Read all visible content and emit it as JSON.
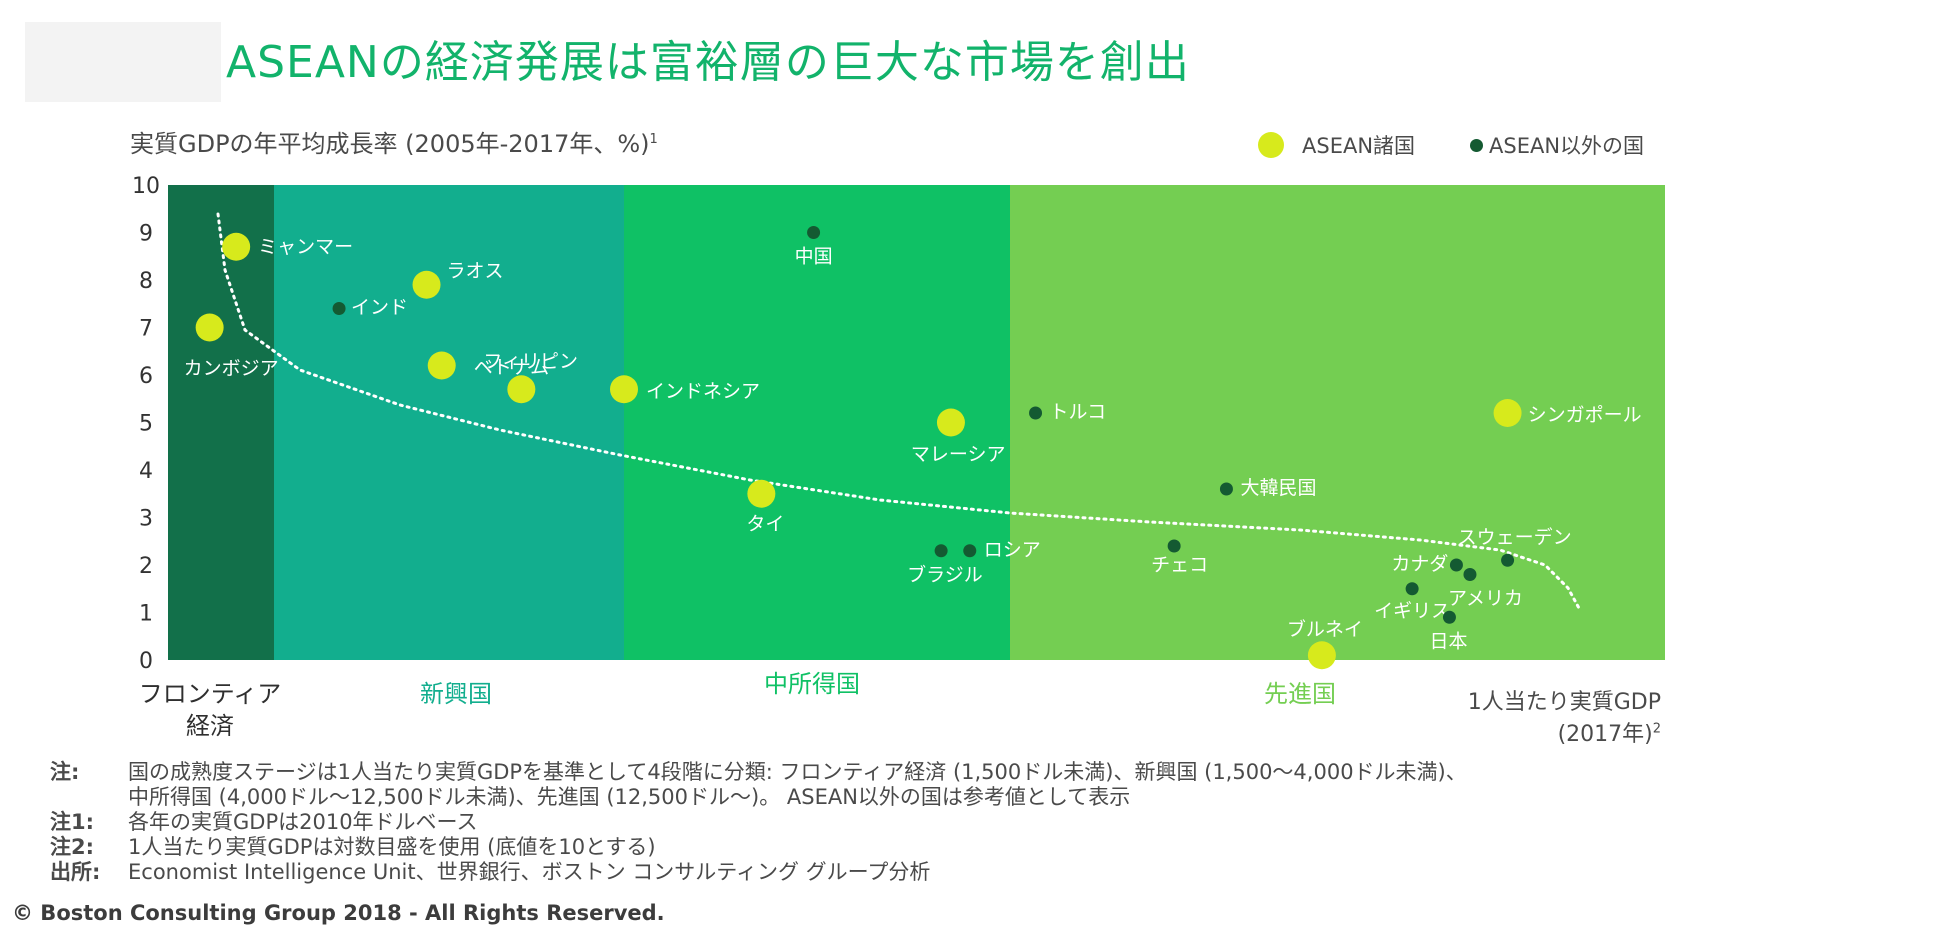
{
  "title": "ASEANの経済発展は富裕層の巨大な市場を創出",
  "colors": {
    "title": "#12b36b",
    "frontier": "#12704a",
    "emerging": "#12ae8e",
    "middle": "#0fc165",
    "advanced": "#74ce52",
    "asean_dot": "#d7ea1c",
    "other_dot": "#145a32",
    "trend": "#ffffff"
  },
  "legend": {
    "asean_label": "ASEAN諸国",
    "asean_icon": "large-yellow-dot",
    "other_label": "ASEAN以外の国",
    "other_icon": "small-dark-green-dot"
  },
  "chart_data": {
    "type": "scatter",
    "ylabel_main": "実質GDPの年平均成長率 (2005年-2017年、%)",
    "ylabel_sup": "1",
    "xlabel_line1": "1人当たり実質GDP",
    "xlabel_line2": "(2017年)",
    "xlabel_sup": "2",
    "x_scale": "log",
    "ylim": [
      0,
      10
    ],
    "y_ticks": [
      "0",
      "1",
      "2",
      "3",
      "4",
      "5",
      "6",
      "7",
      "8",
      "9",
      "10"
    ],
    "grid": false,
    "legend_position": "top-right",
    "zones": [
      {
        "label_line1": "フロンティア",
        "label_line2": "経済",
        "x_start": 0,
        "x_end": 1500,
        "color_key": "frontier",
        "label_color": "#2f2f2f"
      },
      {
        "label_line1": "新興国",
        "label_line2": "",
        "x_start": 1500,
        "x_end": 4000,
        "color_key": "emerging",
        "label_color": "#12ae8e"
      },
      {
        "label_line1": "中所得国",
        "label_line2": "",
        "x_start": 4000,
        "x_end": 12500,
        "color_key": "middle",
        "label_color": "#0fc165"
      },
      {
        "label_line1": "先進国",
        "label_line2": "",
        "x_start": 12500,
        "x_end": null,
        "color_key": "advanced",
        "label_color": "#74ce52"
      }
    ],
    "series": [
      {
        "name": "ASEAN諸国",
        "points": [
          {
            "label": "ミャンマー",
            "x": 1250,
            "y": 8.7
          },
          {
            "label": "カンボジア",
            "x": 1100,
            "y": 7.0
          },
          {
            "label": "ラオス",
            "x": 2300,
            "y": 7.9
          },
          {
            "label": "ベトナム",
            "x": 2400,
            "y": 6.2
          },
          {
            "label": "フィリピン",
            "x": 3000,
            "y": 5.7
          },
          {
            "label": "インドネシア",
            "x": 4000,
            "y": 5.7
          },
          {
            "label": "タイ",
            "x": 6000,
            "y": 3.5
          },
          {
            "label": "マレーシア",
            "x": 10500,
            "y": 5.0
          },
          {
            "label": "シンガポール",
            "x": 56000,
            "y": 5.2
          },
          {
            "label": "ブルネイ",
            "x": 32000,
            "y": 0.1
          }
        ]
      },
      {
        "name": "ASEAN以外の国",
        "points": [
          {
            "label": "インド",
            "x": 1800,
            "y": 7.4
          },
          {
            "label": "中国",
            "x": 7000,
            "y": 9.0
          },
          {
            "label": "トルコ",
            "x": 13500,
            "y": 5.2
          },
          {
            "label": "ブラジル",
            "x": 10200,
            "y": 2.3
          },
          {
            "label": "ロシア",
            "x": 11100,
            "y": 2.3
          },
          {
            "label": "大韓民国",
            "x": 24000,
            "y": 3.6
          },
          {
            "label": "チェコ",
            "x": 20500,
            "y": 2.4
          },
          {
            "label": "スウェーデン",
            "x": 56000,
            "y": 2.1
          },
          {
            "label": "カナダ",
            "x": 48000,
            "y": 2.0
          },
          {
            "label": "アメリカ",
            "x": 50000,
            "y": 1.8
          },
          {
            "label": "イギリス",
            "x": 42000,
            "y": 1.5
          },
          {
            "label": "日本",
            "x": 47000,
            "y": 0.9
          }
        ]
      }
    ],
    "trendline": "dotted"
  },
  "notes": [
    {
      "key": "注:",
      "lines": [
        "国の成熟度ステージは1人当たり実質GDPを基準として4段階に分類: フロンティア経済 (1,500ドル未満)、新興国 (1,500〜4,000ドル未満)、",
        "中所得国 (4,000ドル〜12,500ドル未満)、先進国 (12,500ドル〜)。 ASEAN以外の国は参考値として表示"
      ]
    },
    {
      "key": "注1:",
      "lines": [
        "各年の実質GDPは2010年ドルベース"
      ]
    },
    {
      "key": "注2:",
      "lines": [
        "1人当たり実質GDPは対数目盛を使用 (底値を10とする)"
      ]
    },
    {
      "key": "出所:",
      "lines": [
        "Economist Intelligence Unit、世界銀行、ボストン コンサルティング グループ分析"
      ]
    }
  ],
  "copyright": "© Boston Consulting Group 2018 - All Rights Reserved."
}
